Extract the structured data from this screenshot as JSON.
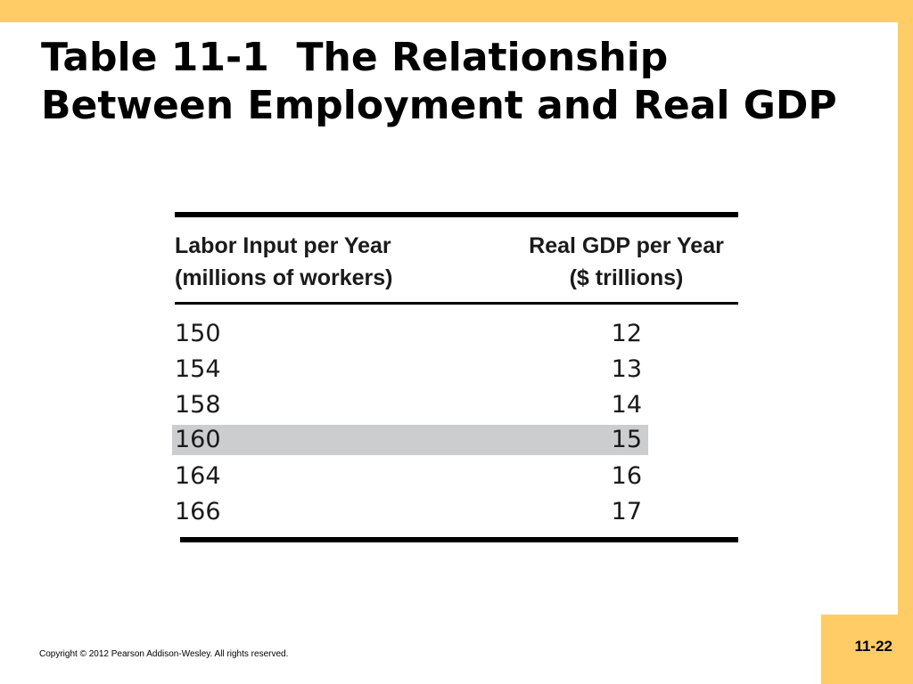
{
  "slide": {
    "title_bold": "Table 11-1",
    "title_rest": "The Relationship Between Employment and Real GDP",
    "page_number": "11-22",
    "copyright": "Copyright © 2012 Pearson Addison-Wesley. All rights reserved.",
    "frame_color": "#ffcc66"
  },
  "table": {
    "header_left": {
      "line1": "Labor Input per Year",
      "line2": "(millions of workers)"
    },
    "header_right": {
      "line1": "Real GDP per Year",
      "line2": "($ trillions)"
    },
    "rows": [
      {
        "labor": "150",
        "gdp": "12"
      },
      {
        "labor": "154",
        "gdp": "13"
      },
      {
        "labor": "158",
        "gdp": "14"
      },
      {
        "labor": "160",
        "gdp": "15"
      },
      {
        "labor": "164",
        "gdp": "16"
      },
      {
        "labor": "166",
        "gdp": "17"
      }
    ],
    "highlighted_row_index": 3,
    "highlight_color": "#cccdcf"
  }
}
